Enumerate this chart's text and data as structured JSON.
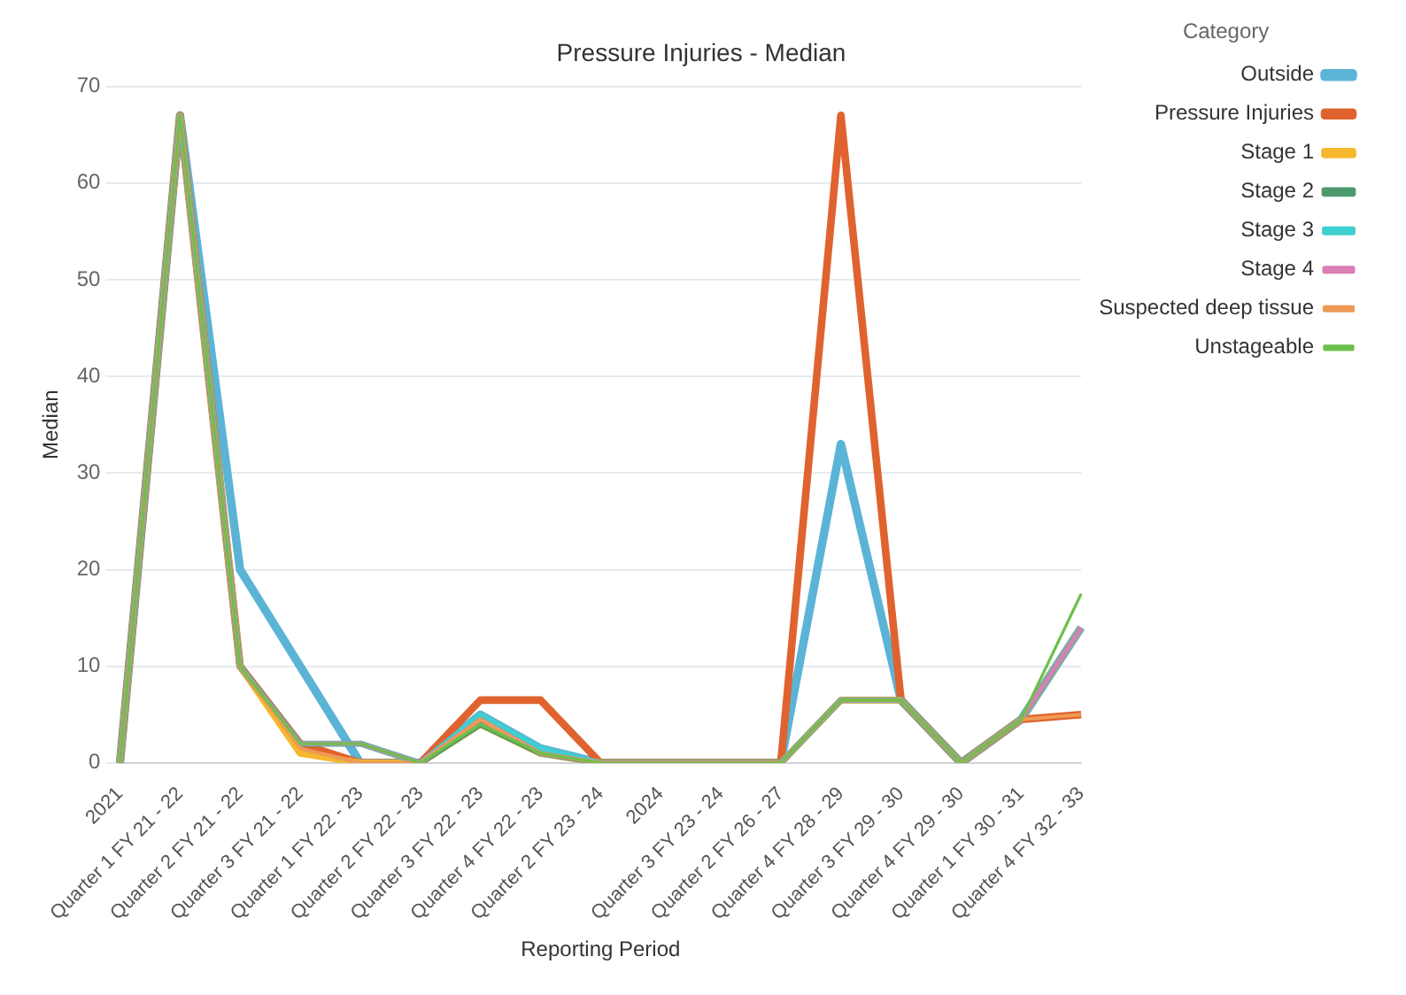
{
  "chart_data": {
    "type": "line",
    "title": "Pressure Injuries - Median",
    "xlabel": "Reporting Period",
    "ylabel": "Median",
    "legend_title": "Category",
    "categories": [
      "2021",
      "Quarter 1 FY 21 - 22",
      "Quarter 2 FY 21 - 22",
      "Quarter 3 FY 21 - 22",
      "Quarter 1 FY 22 - 23",
      "Quarter 2 FY 22 - 23",
      "Quarter 3 FY 22 - 23",
      "Quarter 4 FY 22 - 23",
      "Quarter 2 FY 23 - 24",
      "2024",
      "Quarter 3 FY 23 - 24",
      "Quarter 2 FY 26 - 27",
      "Quarter 4 FY 28 - 29",
      "Quarter 3 FY 29 - 30",
      "Quarter 4 FY 29 - 30",
      "Quarter 1 FY 30 - 31",
      "Quarter 4 FY 32 - 33"
    ],
    "series": [
      {
        "name": "Outside",
        "color": "#5bb4d6",
        "values": [
          0,
          67,
          20,
          10,
          0,
          0,
          5,
          1.5,
          0,
          0,
          0,
          0,
          33,
          6.5,
          0,
          4.5,
          14
        ]
      },
      {
        "name": "Pressure Injuries",
        "color": "#e0632f",
        "values": [
          0,
          67,
          10,
          2,
          0,
          0,
          6.5,
          6.5,
          0,
          0,
          0,
          0,
          67,
          6.5,
          0,
          4.5,
          5
        ]
      },
      {
        "name": "Stage 1",
        "color": "#f5b82e",
        "values": [
          0,
          67,
          10,
          1,
          0,
          0,
          4,
          1,
          0,
          0,
          0,
          0,
          6.5,
          6.5,
          0,
          4.5,
          14
        ]
      },
      {
        "name": "Stage 2",
        "color": "#4e9a6e",
        "values": [
          0,
          67,
          10,
          2,
          2,
          0,
          4,
          1,
          0,
          0,
          0,
          0,
          6.5,
          6.5,
          0,
          4.5,
          14
        ]
      },
      {
        "name": "Stage 3",
        "color": "#3fcfcf",
        "values": [
          0,
          67,
          10,
          2,
          2,
          0,
          5,
          1.5,
          0,
          0,
          0,
          0,
          6.5,
          6.5,
          0,
          4.5,
          14
        ]
      },
      {
        "name": "Stage 4",
        "color": "#d97fb5",
        "values": [
          0,
          67,
          10,
          2,
          2,
          0,
          4.5,
          1,
          0,
          0,
          0,
          0,
          6.5,
          6.5,
          0,
          4.5,
          14
        ]
      },
      {
        "name": "Suspected deep tissue",
        "color": "#ee9a55",
        "values": [
          0,
          67,
          10,
          1.5,
          0,
          0,
          4.5,
          1,
          0,
          0,
          0,
          0,
          6.5,
          6.5,
          0,
          4.5,
          5
        ]
      },
      {
        "name": "Unstageable",
        "color": "#6cc04a",
        "values": [
          0,
          67,
          10,
          2,
          2,
          0,
          4,
          1,
          0,
          0,
          0,
          0,
          6.5,
          6.5,
          0,
          4.5,
          17.5
        ]
      }
    ],
    "ylim": [
      0,
      70
    ],
    "yticks": [
      0,
      10,
      20,
      30,
      40,
      50,
      60,
      70
    ],
    "grid": "y",
    "legend": "right",
    "marker": "none",
    "line_style": "solid"
  }
}
